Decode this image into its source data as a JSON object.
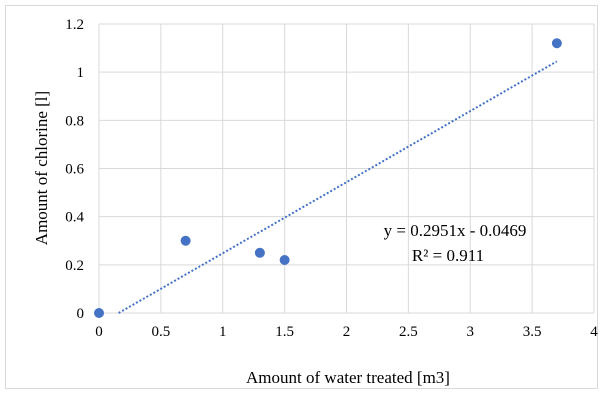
{
  "chart_data": {
    "type": "scatter",
    "title": "",
    "xlabel": "Amount of water treated [m3]",
    "ylabel": "Amount of chlorine [l]",
    "xlim": [
      0,
      4
    ],
    "ylim": [
      0,
      1.2
    ],
    "x_ticks": [
      "0",
      "0.5",
      "1",
      "1.5",
      "2",
      "2.5",
      "3",
      "3.5",
      "4"
    ],
    "y_ticks": [
      "0",
      "0.2",
      "0.4",
      "0.6",
      "0.8",
      "1",
      "1.2"
    ],
    "x_tick_values": [
      0,
      0.5,
      1,
      1.5,
      2,
      2.5,
      3,
      3.5,
      4
    ],
    "y_tick_values": [
      0,
      0.2,
      0.4,
      0.6,
      0.8,
      1,
      1.2
    ],
    "grid": true,
    "legend": "none",
    "series": [
      {
        "points": [
          {
            "x": 0,
            "y": 0
          },
          {
            "x": 0.7,
            "y": 0.3
          },
          {
            "x": 1.3,
            "y": 0.25
          },
          {
            "x": 1.5,
            "y": 0.22
          },
          {
            "x": 3.7,
            "y": 1.12
          }
        ],
        "color": "#4472c4"
      }
    ],
    "trendline": {
      "type": "linear",
      "slope": 0.2951,
      "intercept": -0.0469,
      "x_range": [
        0,
        3.7
      ],
      "style": "dotted",
      "color": "#4472c4",
      "equation_label": "y = 0.2951x - 0.0469",
      "r2_label": "R² = 0.911"
    }
  }
}
